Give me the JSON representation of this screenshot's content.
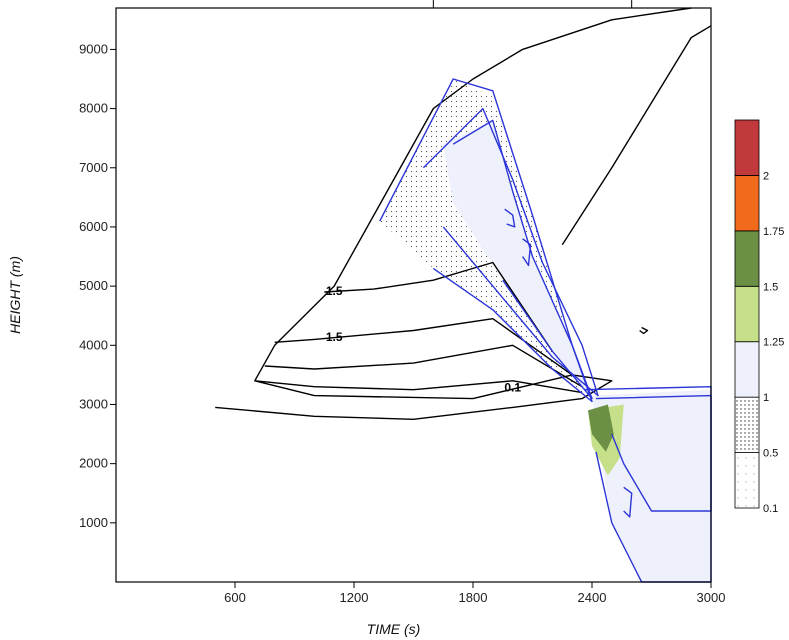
{
  "chart_data": {
    "type": "contour",
    "xlabel": "TIME (s)",
    "ylabel": "HEIGHT (m)",
    "xlim": [
      0,
      3000
    ],
    "ylim": [
      0,
      9700
    ],
    "x_ticks": [
      600,
      1200,
      1800,
      2400,
      3000
    ],
    "x_tick_labels": [
      "600",
      "1200",
      "1800",
      "2400",
      "3000"
    ],
    "y_ticks": [
      1000,
      2000,
      3000,
      4000,
      5000,
      6000,
      7000,
      8000,
      9000
    ],
    "y_tick_labels": [
      "1000",
      "2000",
      "3000",
      "4000",
      "5000",
      "6000",
      "7000",
      "8000",
      "9000"
    ],
    "colorbar": {
      "levels": [
        0.1,
        0.5,
        1,
        1.25,
        1.5,
        1.75,
        2
      ],
      "labels": [
        "0.1",
        "0.5",
        "1",
        "1.25",
        "1.5",
        "1.75",
        "2"
      ],
      "colors": [
        "#ffffff",
        "#ffffff",
        "#eef0fb",
        "#c6e08a",
        "#6a8f45",
        "#f26a1c",
        "#c2393c"
      ]
    },
    "contour_labels": [
      {
        "text": "1.5",
        "x": 1100,
        "y": 4850
      },
      {
        "text": "1.5",
        "x": 1100,
        "y": 4070
      },
      {
        "text": "0.1",
        "x": 2000,
        "y": 3220
      }
    ],
    "shaded_regions": [
      {
        "level": 0.5,
        "points": [
          [
            1330,
            6100
          ],
          [
            1700,
            8500
          ],
          [
            1900,
            8200
          ],
          [
            2100,
            6200
          ],
          [
            2300,
            4000
          ],
          [
            2400,
            3050
          ],
          [
            2200,
            3600
          ],
          [
            1900,
            4600
          ],
          [
            1600,
            5300
          ]
        ]
      },
      {
        "level": 1,
        "points": [
          [
            1650,
            7400
          ],
          [
            1900,
            7800
          ],
          [
            2000,
            6600
          ],
          [
            2100,
            5500
          ],
          [
            2300,
            4000
          ],
          [
            2400,
            3100
          ],
          [
            2200,
            3900
          ],
          [
            1950,
            5100
          ],
          [
            1700,
            6400
          ]
        ]
      },
      {
        "level": 1,
        "points": [
          [
            2400,
            3150
          ],
          [
            3000,
            3250
          ],
          [
            3000,
            0
          ],
          [
            2650,
            0
          ],
          [
            2500,
            1000
          ],
          [
            2450,
            2000
          ]
        ]
      },
      {
        "level": 1.25,
        "points": [
          [
            2380,
            2900
          ],
          [
            2560,
            3000
          ],
          [
            2540,
            2100
          ],
          [
            2480,
            1800
          ],
          [
            2400,
            2300
          ]
        ]
      },
      {
        "level": 1.5,
        "points": [
          [
            2380,
            2900
          ],
          [
            2480,
            3000
          ],
          [
            2510,
            2500
          ],
          [
            2470,
            2200
          ],
          [
            2400,
            2500
          ]
        ]
      }
    ],
    "contours": [
      {
        "color": "#000000",
        "level": 0.1,
        "points": [
          [
            500,
            2950
          ],
          [
            1000,
            2800
          ],
          [
            1500,
            2750
          ],
          [
            2000,
            2950
          ],
          [
            2350,
            3100
          ],
          [
            2500,
            3400
          ],
          [
            2300,
            3500
          ],
          [
            1800,
            3100
          ],
          [
            1000,
            3150
          ],
          [
            700,
            3400
          ],
          [
            800,
            4000
          ],
          [
            1100,
            5000
          ],
          [
            1400,
            6800
          ],
          [
            1600,
            8000
          ],
          [
            1800,
            8500
          ],
          [
            2050,
            9000
          ],
          [
            2500,
            9500
          ],
          [
            2900,
            9700
          ]
        ]
      },
      {
        "color": "#000000",
        "level": 0.5,
        "points": [
          [
            700,
            3400
          ],
          [
            1000,
            3300
          ],
          [
            1500,
            3250
          ],
          [
            2000,
            3400
          ],
          [
            2350,
            3200
          ]
        ]
      },
      {
        "color": "#000000",
        "level": 1.0,
        "points": [
          [
            750,
            3650
          ],
          [
            1000,
            3600
          ],
          [
            1500,
            3700
          ],
          [
            2000,
            4000
          ],
          [
            2350,
            3300
          ]
        ]
      },
      {
        "color": "#000000",
        "level": 1.5,
        "points": [
          [
            800,
            4050
          ],
          [
            1000,
            4100
          ],
          [
            1500,
            4250
          ],
          [
            1900,
            4450
          ],
          [
            2300,
            3500
          ]
        ]
      },
      {
        "color": "#000000",
        "level": 1.5,
        "points": [
          [
            1050,
            4900
          ],
          [
            1300,
            4950
          ],
          [
            1600,
            5100
          ],
          [
            1900,
            5400
          ],
          [
            2200,
            3900
          ]
        ]
      },
      {
        "color": "#000000",
        "level": 0.1,
        "points": [
          [
            2250,
            5700
          ],
          [
            2500,
            7000
          ],
          [
            2900,
            9200
          ],
          [
            3000,
            9400
          ]
        ]
      },
      {
        "color": "#000000",
        "level": 0.1,
        "points": [
          [
            2650,
            4300
          ],
          [
            2680,
            4250
          ],
          [
            2660,
            4200
          ],
          [
            2640,
            4250
          ]
        ]
      },
      {
        "color": "#2b35d8",
        "level": 0.1,
        "points": [
          [
            1330,
            6100
          ],
          [
            1700,
            8500
          ],
          [
            1900,
            8300
          ],
          [
            2100,
            6200
          ],
          [
            2300,
            4000
          ],
          [
            2400,
            3050
          ],
          [
            2200,
            3600
          ],
          [
            1900,
            4600
          ],
          [
            1600,
            5300
          ]
        ]
      },
      {
        "color": "#2b35d8",
        "level": 0.5,
        "points": [
          [
            1550,
            7000
          ],
          [
            1850,
            8000
          ],
          [
            2000,
            6800
          ],
          [
            2150,
            5400
          ],
          [
            2350,
            4000
          ],
          [
            2430,
            3150
          ],
          [
            2200,
            3800
          ],
          [
            1900,
            5000
          ],
          [
            1650,
            6000
          ]
        ]
      },
      {
        "color": "#2b35d8",
        "level": 1,
        "points": [
          [
            1700,
            7400
          ],
          [
            1900,
            7800
          ],
          [
            2000,
            6600
          ],
          [
            2100,
            5500
          ],
          [
            2300,
            4000
          ],
          [
            2400,
            3100
          ],
          [
            2200,
            3900
          ],
          [
            1950,
            5100
          ]
        ]
      },
      {
        "color": "#2b35d8",
        "level": 0.5,
        "points": [
          [
            2360,
            3250
          ],
          [
            3000,
            3300
          ],
          [
            3000,
            0
          ],
          [
            2650,
            0
          ],
          [
            2500,
            1000
          ],
          [
            2420,
            2200
          ]
        ]
      },
      {
        "color": "#2b35d8",
        "level": 1,
        "points": [
          [
            2420,
            3100
          ],
          [
            3000,
            3150
          ],
          [
            3000,
            1200
          ],
          [
            2700,
            1200
          ],
          [
            2560,
            2000
          ],
          [
            2500,
            2500
          ]
        ]
      },
      {
        "color": "#2b35d8",
        "level": 1.25,
        "points": [
          [
            2560,
            1600
          ],
          [
            2600,
            1500
          ],
          [
            2590,
            1100
          ],
          [
            2560,
            1200
          ]
        ]
      },
      {
        "color": "#2b35d8",
        "level": 1.25,
        "points": [
          [
            1960,
            6300
          ],
          [
            2000,
            6200
          ],
          [
            2010,
            6000
          ],
          [
            1970,
            6050
          ]
        ]
      },
      {
        "color": "#2b35d8",
        "level": 1.25,
        "points": [
          [
            2050,
            5800
          ],
          [
            2090,
            5700
          ],
          [
            2080,
            5350
          ],
          [
            2050,
            5500
          ]
        ]
      }
    ]
  }
}
